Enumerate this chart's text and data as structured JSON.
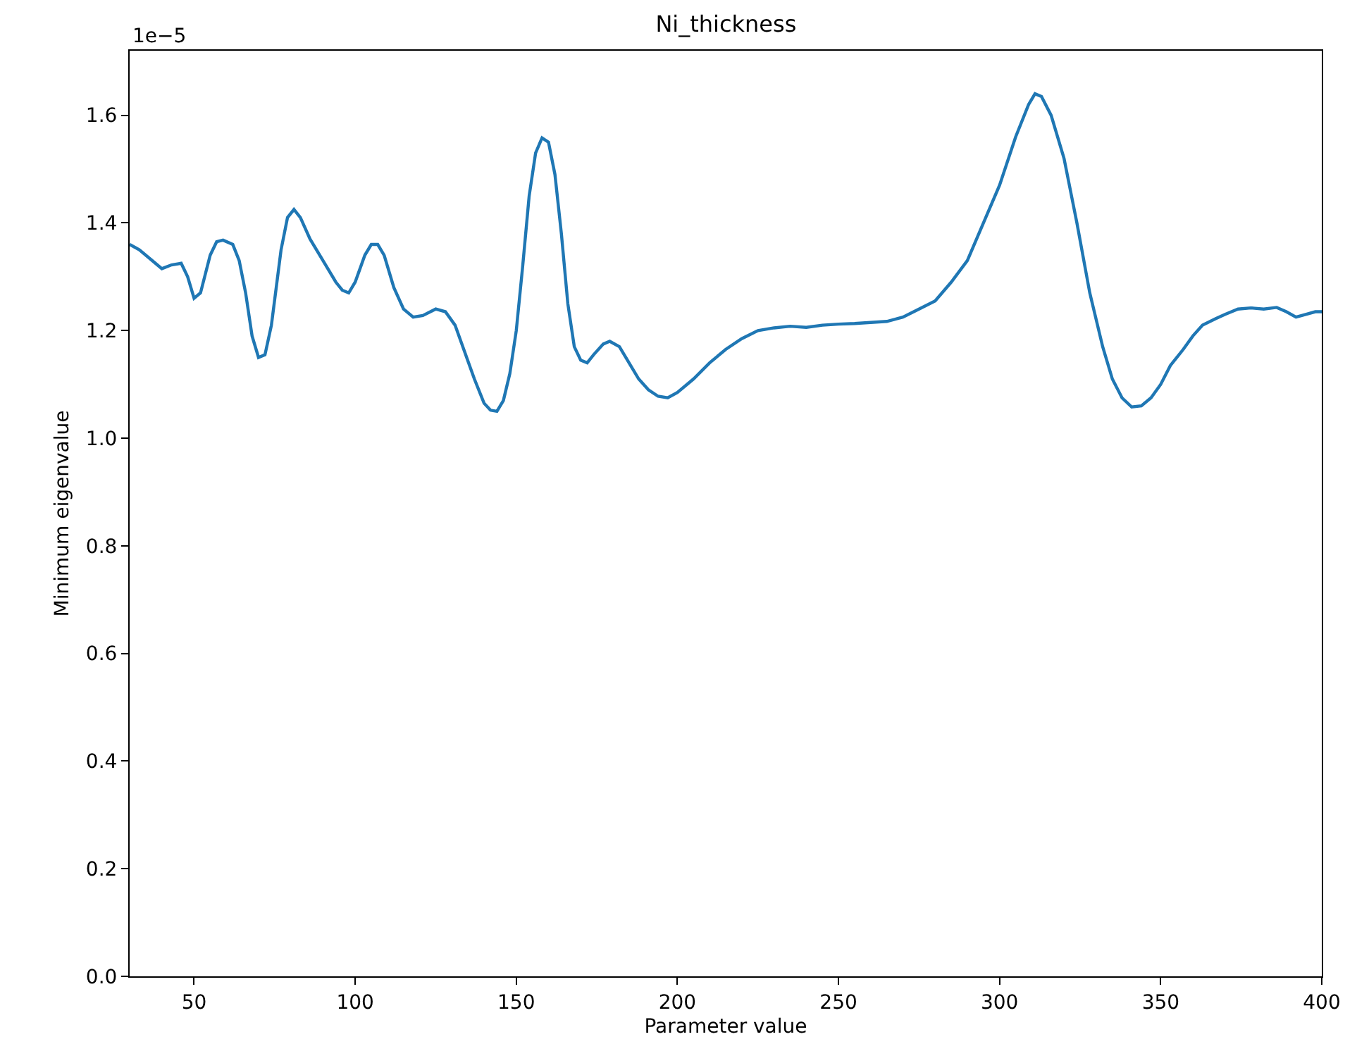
{
  "chart_data": {
    "type": "line",
    "title": "Ni_thickness",
    "xlabel": "Parameter value",
    "ylabel": "Minimum eigenvalue",
    "annotations": [
      "1e−5"
    ],
    "xlim": [
      30,
      400
    ],
    "xticks": [
      50,
      100,
      150,
      200,
      250,
      300,
      350,
      400
    ],
    "ylim": [
      0,
      1.72
    ],
    "yticks": [
      {
        "value": 0,
        "label": "0.0"
      },
      {
        "value": 0.2,
        "label": "0.2"
      },
      {
        "value": 0.4,
        "label": "0.4"
      },
      {
        "value": 0.6,
        "label": "0.6"
      },
      {
        "value": 0.8,
        "label": "0.8"
      },
      {
        "value": 1.0,
        "label": "1.0"
      },
      {
        "value": 1.2,
        "label": "1.2"
      },
      {
        "value": 1.4,
        "label": "1.4"
      },
      {
        "value": 1.6,
        "label": "1.6"
      }
    ],
    "legend": false,
    "marker": "none",
    "line_style": "solid",
    "series": [
      {
        "color": "#1f77b4",
        "x": [
          30,
          33,
          38,
          40,
          43,
          46,
          48,
          50,
          52,
          55,
          57,
          59,
          62,
          64,
          66,
          68,
          70,
          72,
          74,
          77,
          79,
          81,
          83,
          86,
          90,
          94,
          96,
          98,
          100,
          103,
          105,
          107,
          109,
          112,
          115,
          118,
          121,
          125,
          128,
          131,
          134,
          137,
          140,
          142,
          144,
          146,
          148,
          150,
          152,
          154,
          156,
          158,
          160,
          162,
          164,
          166,
          168,
          170,
          172,
          174,
          177,
          179,
          182,
          185,
          188,
          191,
          194,
          197,
          200,
          205,
          210,
          215,
          220,
          225,
          230,
          235,
          240,
          245,
          250,
          255,
          260,
          265,
          270,
          275,
          280,
          285,
          290,
          295,
          300,
          305,
          309,
          311,
          313,
          316,
          320,
          324,
          328,
          332,
          335,
          338,
          341,
          344,
          347,
          350,
          353,
          357,
          360,
          363,
          367,
          370,
          374,
          378,
          382,
          386,
          389,
          392,
          395,
          398,
          400
        ],
        "values": [
          1.36,
          1.35,
          1.325,
          1.315,
          1.322,
          1.325,
          1.3,
          1.26,
          1.27,
          1.34,
          1.365,
          1.368,
          1.36,
          1.33,
          1.27,
          1.19,
          1.15,
          1.155,
          1.21,
          1.35,
          1.41,
          1.425,
          1.41,
          1.37,
          1.33,
          1.29,
          1.275,
          1.27,
          1.29,
          1.34,
          1.36,
          1.36,
          1.34,
          1.28,
          1.24,
          1.225,
          1.228,
          1.24,
          1.235,
          1.21,
          1.16,
          1.11,
          1.065,
          1.052,
          1.05,
          1.07,
          1.12,
          1.2,
          1.32,
          1.45,
          1.53,
          1.558,
          1.55,
          1.49,
          1.38,
          1.25,
          1.17,
          1.145,
          1.14,
          1.155,
          1.175,
          1.18,
          1.17,
          1.14,
          1.11,
          1.09,
          1.078,
          1.075,
          1.085,
          1.11,
          1.14,
          1.165,
          1.185,
          1.2,
          1.205,
          1.208,
          1.206,
          1.21,
          1.212,
          1.213,
          1.215,
          1.217,
          1.225,
          1.24,
          1.255,
          1.29,
          1.33,
          1.4,
          1.47,
          1.56,
          1.62,
          1.64,
          1.635,
          1.6,
          1.52,
          1.4,
          1.27,
          1.17,
          1.11,
          1.075,
          1.058,
          1.06,
          1.075,
          1.1,
          1.135,
          1.165,
          1.19,
          1.21,
          1.222,
          1.23,
          1.24,
          1.242,
          1.24,
          1.243,
          1.235,
          1.225,
          1.23,
          1.235,
          1.235
        ]
      }
    ]
  }
}
